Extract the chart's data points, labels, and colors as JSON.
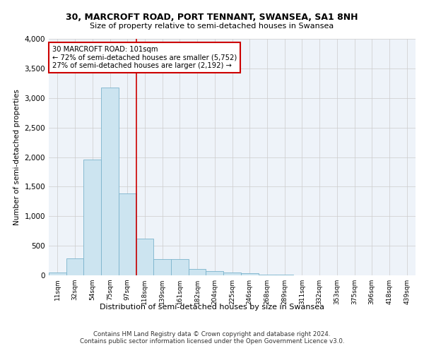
{
  "title1": "30, MARCROFT ROAD, PORT TENNANT, SWANSEA, SA1 8NH",
  "title2": "Size of property relative to semi-detached houses in Swansea",
  "xlabel": "Distribution of semi-detached houses by size in Swansea",
  "ylabel": "Number of semi-detached properties",
  "annotation_title": "30 MARCROFT ROAD: 101sqm",
  "annotation_line1": "← 72% of semi-detached houses are smaller (5,752)",
  "annotation_line2": "27% of semi-detached houses are larger (2,192) →",
  "footer1": "Contains HM Land Registry data © Crown copyright and database right 2024.",
  "footer2": "Contains public sector information licensed under the Open Government Licence v3.0.",
  "categories": [
    "11sqm",
    "32sqm",
    "54sqm",
    "75sqm",
    "97sqm",
    "118sqm",
    "139sqm",
    "161sqm",
    "182sqm",
    "204sqm",
    "225sqm",
    "246sqm",
    "268sqm",
    "289sqm",
    "311sqm",
    "332sqm",
    "353sqm",
    "375sqm",
    "396sqm",
    "418sqm",
    "439sqm"
  ],
  "values": [
    50,
    290,
    1960,
    3180,
    1390,
    620,
    280,
    270,
    110,
    75,
    50,
    30,
    15,
    8,
    5,
    4,
    3,
    2,
    1,
    1,
    1
  ],
  "bar_color": "#cce4f0",
  "bar_edge_color": "#7ab3cc",
  "highlight_color": "#cc0000",
  "grid_color": "#cccccc",
  "ax_bg_color": "#eef3f9",
  "background_color": "#ffffff",
  "annotation_box_color": "#ffffff",
  "annotation_border_color": "#cc0000",
  "ylim": [
    0,
    4000
  ],
  "yticks": [
    0,
    500,
    1000,
    1500,
    2000,
    2500,
    3000,
    3500,
    4000
  ],
  "red_line_x": 4.5
}
